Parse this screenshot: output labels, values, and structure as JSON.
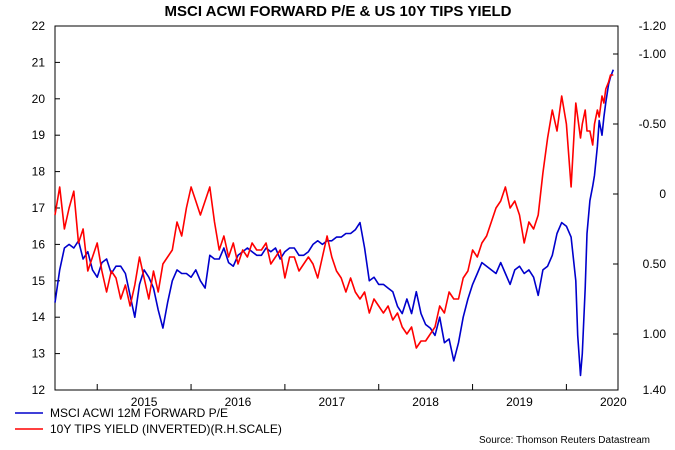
{
  "chart_data": {
    "type": "line",
    "title": "MSCI ACWI FORWARD P/E & US 10Y TIPS YIELD",
    "source": "Source: Thomson Reuters Datastream",
    "x_ticks": [
      "2015",
      "2016",
      "2017",
      "2018",
      "2019",
      "2020"
    ],
    "xlim": [
      2014.55,
      2020.55
    ],
    "y_left": {
      "lim": [
        12,
        22
      ],
      "ticks": [
        12,
        13,
        14,
        15,
        16,
        17,
        18,
        19,
        20,
        21,
        22
      ]
    },
    "y_right": {
      "lim": [
        1.4,
        -1.2
      ],
      "inverted": true,
      "ticks": [
        -1.2,
        -1.0,
        -0.5,
        0,
        0.5,
        1.0,
        1.4
      ],
      "tick_labels": [
        "-1.20",
        "-1.00",
        "-0.50",
        "0",
        "0.50",
        "1.00",
        "1.40"
      ]
    },
    "grid": false,
    "legend_position": "bottom-left",
    "series": [
      {
        "name": "MSCI ACWI 12M FORWARD P/E",
        "color": "#0000cc",
        "axis": "left",
        "x": [
          2014.55,
          2014.6,
          2014.65,
          2014.7,
          2014.75,
          2014.8,
          2014.85,
          2014.9,
          2014.95,
          2015.0,
          2015.05,
          2015.1,
          2015.15,
          2015.2,
          2015.25,
          2015.3,
          2015.35,
          2015.4,
          2015.45,
          2015.5,
          2015.55,
          2015.6,
          2015.65,
          2015.7,
          2015.75,
          2015.8,
          2015.85,
          2015.9,
          2015.95,
          2016.0,
          2016.05,
          2016.1,
          2016.15,
          2016.2,
          2016.25,
          2016.3,
          2016.35,
          2016.4,
          2016.45,
          2016.5,
          2016.55,
          2016.6,
          2016.65,
          2016.7,
          2016.75,
          2016.8,
          2016.85,
          2016.9,
          2016.95,
          2017.0,
          2017.05,
          2017.1,
          2017.15,
          2017.2,
          2017.25,
          2017.3,
          2017.35,
          2017.4,
          2017.45,
          2017.5,
          2017.55,
          2017.6,
          2017.65,
          2017.7,
          2017.75,
          2017.8,
          2017.85,
          2017.9,
          2017.95,
          2018.0,
          2018.05,
          2018.1,
          2018.15,
          2018.2,
          2018.25,
          2018.3,
          2018.35,
          2018.4,
          2018.45,
          2018.5,
          2018.55,
          2018.6,
          2018.65,
          2018.7,
          2018.75,
          2018.8,
          2018.85,
          2018.9,
          2018.95,
          2019.0,
          2019.05,
          2019.1,
          2019.15,
          2019.2,
          2019.25,
          2019.3,
          2019.35,
          2019.4,
          2019.45,
          2019.5,
          2019.55,
          2019.6,
          2019.65,
          2019.7,
          2019.75,
          2019.8,
          2019.85,
          2019.9,
          2019.95,
          2020.0,
          2020.05,
          2020.1,
          2020.12,
          2020.15,
          2020.17,
          2020.2,
          2020.22,
          2020.25,
          2020.28,
          2020.3,
          2020.33,
          2020.35,
          2020.38,
          2020.4,
          2020.42,
          2020.45,
          2020.47,
          2020.5
        ],
        "values": [
          14.4,
          15.3,
          15.9,
          16.0,
          15.9,
          16.1,
          15.6,
          15.8,
          15.3,
          15.1,
          15.5,
          15.6,
          15.2,
          15.4,
          15.4,
          15.2,
          14.6,
          14.0,
          14.9,
          15.3,
          15.1,
          14.8,
          14.2,
          13.7,
          14.4,
          15.0,
          15.3,
          15.2,
          15.2,
          15.1,
          15.3,
          15.0,
          14.8,
          15.7,
          15.6,
          15.6,
          15.9,
          15.5,
          15.4,
          15.7,
          15.8,
          15.9,
          15.8,
          15.7,
          15.7,
          15.9,
          15.8,
          15.9,
          15.6,
          15.8,
          15.9,
          15.9,
          15.7,
          15.7,
          15.8,
          16.0,
          16.1,
          16.0,
          16.1,
          16.1,
          16.2,
          16.2,
          16.3,
          16.3,
          16.4,
          16.6,
          15.9,
          15.0,
          15.1,
          14.9,
          14.9,
          14.8,
          14.7,
          14.3,
          14.1,
          14.5,
          14.1,
          14.7,
          14.1,
          13.8,
          13.7,
          13.5,
          14.0,
          13.3,
          13.4,
          12.8,
          13.3,
          14.0,
          14.5,
          14.9,
          15.2,
          15.5,
          15.4,
          15.3,
          15.2,
          15.5,
          15.2,
          14.9,
          15.3,
          15.4,
          15.2,
          15.3,
          15.1,
          14.6,
          15.3,
          15.4,
          15.7,
          16.3,
          16.6,
          16.5,
          16.2,
          15.0,
          13.5,
          12.4,
          13.0,
          14.8,
          16.3,
          17.2,
          17.6,
          17.9,
          18.7,
          19.4,
          19.0,
          19.5,
          19.9,
          20.4,
          20.6,
          20.8
        ]
      },
      {
        "name": "10Y TIPS YIELD (INVERTED)(R.H.SCALE)",
        "color": "#ff0000",
        "axis": "right",
        "x": [
          2014.55,
          2014.6,
          2014.65,
          2014.7,
          2014.75,
          2014.8,
          2014.85,
          2014.9,
          2014.95,
          2015.0,
          2015.05,
          2015.1,
          2015.15,
          2015.2,
          2015.25,
          2015.3,
          2015.35,
          2015.4,
          2015.45,
          2015.5,
          2015.55,
          2015.6,
          2015.65,
          2015.7,
          2015.75,
          2015.8,
          2015.85,
          2015.9,
          2015.95,
          2016.0,
          2016.05,
          2016.1,
          2016.15,
          2016.2,
          2016.25,
          2016.3,
          2016.35,
          2016.4,
          2016.45,
          2016.5,
          2016.55,
          2016.6,
          2016.65,
          2016.7,
          2016.75,
          2016.8,
          2016.85,
          2016.9,
          2016.95,
          2017.0,
          2017.05,
          2017.1,
          2017.15,
          2017.2,
          2017.25,
          2017.3,
          2017.35,
          2017.4,
          2017.45,
          2017.5,
          2017.55,
          2017.6,
          2017.65,
          2017.7,
          2017.75,
          2017.8,
          2017.85,
          2017.9,
          2017.95,
          2018.0,
          2018.05,
          2018.1,
          2018.15,
          2018.2,
          2018.25,
          2018.3,
          2018.35,
          2018.4,
          2018.45,
          2018.5,
          2018.55,
          2018.6,
          2018.65,
          2018.7,
          2018.75,
          2018.8,
          2018.85,
          2018.9,
          2018.95,
          2019.0,
          2019.05,
          2019.1,
          2019.15,
          2019.2,
          2019.25,
          2019.3,
          2019.35,
          2019.4,
          2019.45,
          2019.5,
          2019.55,
          2019.6,
          2019.65,
          2019.7,
          2019.75,
          2019.8,
          2019.85,
          2019.9,
          2019.95,
          2020.0,
          2020.05,
          2020.1,
          2020.12,
          2020.15,
          2020.17,
          2020.2,
          2020.22,
          2020.25,
          2020.28,
          2020.3,
          2020.33,
          2020.35,
          2020.38,
          2020.4,
          2020.42,
          2020.45,
          2020.47,
          2020.5
        ],
        "values": [
          0.15,
          -0.05,
          0.25,
          0.1,
          -0.02,
          0.35,
          0.25,
          0.55,
          0.45,
          0.35,
          0.55,
          0.7,
          0.55,
          0.6,
          0.75,
          0.65,
          0.8,
          0.65,
          0.45,
          0.6,
          0.75,
          0.55,
          0.7,
          0.5,
          0.45,
          0.4,
          0.2,
          0.3,
          0.1,
          -0.05,
          0.05,
          0.15,
          0.05,
          -0.05,
          0.2,
          0.4,
          0.3,
          0.45,
          0.35,
          0.5,
          0.4,
          0.45,
          0.35,
          0.4,
          0.4,
          0.35,
          0.5,
          0.45,
          0.4,
          0.6,
          0.45,
          0.45,
          0.55,
          0.5,
          0.45,
          0.5,
          0.6,
          0.45,
          0.3,
          0.45,
          0.55,
          0.6,
          0.7,
          0.6,
          0.7,
          0.75,
          0.7,
          0.85,
          0.75,
          0.8,
          0.85,
          0.8,
          0.9,
          0.85,
          0.95,
          1.0,
          0.95,
          1.1,
          1.05,
          1.05,
          1.0,
          0.95,
          0.8,
          0.85,
          0.7,
          0.75,
          0.75,
          0.6,
          0.55,
          0.4,
          0.45,
          0.35,
          0.3,
          0.2,
          0.1,
          0.05,
          -0.05,
          0.1,
          0.05,
          0.15,
          0.35,
          0.2,
          0.25,
          0.15,
          -0.15,
          -0.4,
          -0.6,
          -0.45,
          -0.7,
          -0.5,
          -0.05,
          -0.65,
          -0.55,
          -0.4,
          -0.5,
          -0.6,
          -0.45,
          -0.45,
          -0.35,
          -0.5,
          -0.6,
          -0.55,
          -0.7,
          -0.65,
          -0.75,
          -0.8,
          -0.85,
          -0.85
        ]
      }
    ]
  }
}
